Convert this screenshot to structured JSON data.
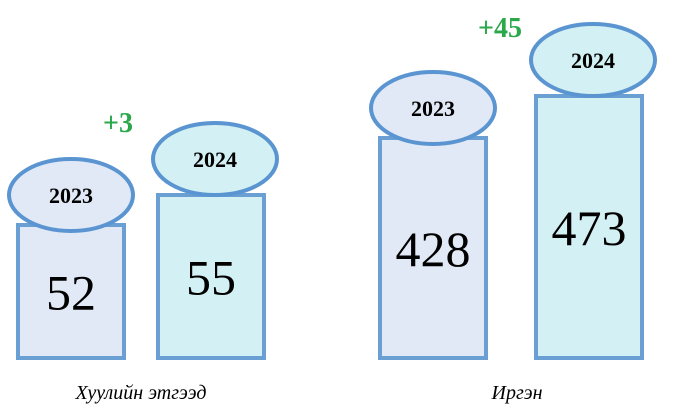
{
  "colors": {
    "bar_2023_fill": "#e2e9f6",
    "bar_2024_fill": "#d3f1f4",
    "bar_stroke": "#6a9fd4",
    "ellipse_2023_fill": "#e2e9f6",
    "ellipse_2024_fill": "#d3f1f4",
    "ellipse_stroke": "#5a95d1",
    "delta_color": "#2aa84a"
  },
  "chart_data": {
    "type": "bar",
    "groups": [
      {
        "label": "Хуулийн этгээд",
        "delta": "+3",
        "bars": [
          {
            "year": "2023",
            "value": 52
          },
          {
            "year": "2024",
            "value": 55
          }
        ]
      },
      {
        "label": "Иргэн",
        "delta": "+45",
        "bars": [
          {
            "year": "2023",
            "value": 428
          },
          {
            "year": "2024",
            "value": 473
          }
        ]
      }
    ]
  }
}
